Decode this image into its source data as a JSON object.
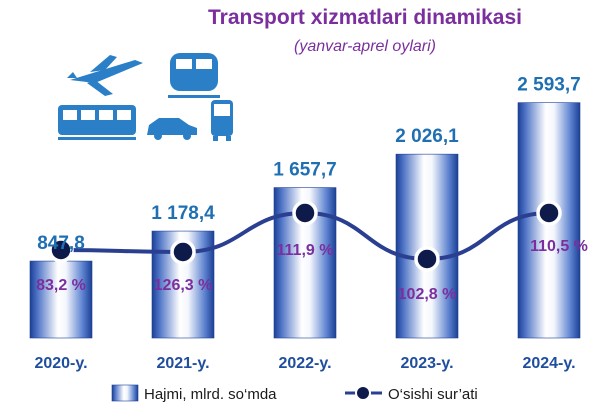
{
  "chart_data": {
    "type": "bar",
    "title": "Transport xizmatlari dinamikasi",
    "subtitle": "(yanvar-aprel oylari)",
    "categories": [
      "2020-y.",
      "2021-y.",
      "2022-y.",
      "2023-y.",
      "2024-y."
    ],
    "series": [
      {
        "name": "Hajmi, mlrd. so‘mda",
        "type": "bar",
        "values": [
          847.8,
          1178.4,
          1657.7,
          2026.1,
          2593.7
        ],
        "labels": [
          "847,8",
          "1 178,4",
          "1 657,7",
          "2 026,1",
          "2 593,7"
        ]
      },
      {
        "name": "O‘sishi sur’ati",
        "type": "line",
        "values": [
          83.2,
          126.3,
          111.9,
          102.8,
          110.5
        ],
        "labels": [
          "83,2 %",
          "126,3 %",
          "111,9 %",
          "102,8 %",
          "110,5 %"
        ]
      }
    ],
    "ylim": [
      0,
      2700
    ],
    "grid": false,
    "legend": "bottom"
  },
  "icons": [
    "airplane-icon",
    "train-icon",
    "tram-icon",
    "car-icon",
    "bus-icon"
  ],
  "colors": {
    "title": "#7b2f9e",
    "value_label": "#1f6fb3",
    "percent_label": "#7b2f9e",
    "category_label": "#1f4e9e",
    "line": "#2a3f8f",
    "marker": "#0d1a4a",
    "bar_edge": "#1c3f94",
    "bar_light": "#ffffff",
    "icon": "#2a7fc6"
  }
}
